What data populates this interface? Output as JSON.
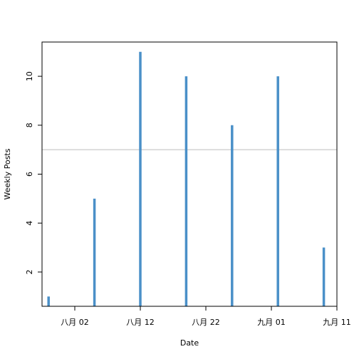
{
  "chart_data": {
    "type": "bar",
    "title": "",
    "xlabel": "Date",
    "ylabel": "Weekly Posts",
    "x_type": "date",
    "x": [
      "2013-07-29",
      "2013-08-05",
      "2013-08-12",
      "2013-08-19",
      "2013-08-26",
      "2013-09-02",
      "2013-09-09"
    ],
    "values": [
      1,
      5,
      11,
      10,
      8,
      10,
      3
    ],
    "xlim": [
      "2013-07-28",
      "2013-09-11"
    ],
    "ylim": [
      0.6,
      11.4
    ],
    "x_ticks": [
      {
        "date": "2013-08-02",
        "label": "八月 02"
      },
      {
        "date": "2013-08-12",
        "label": "八月 12"
      },
      {
        "date": "2013-08-22",
        "label": "八月 22"
      },
      {
        "date": "2013-09-01",
        "label": "九月 01"
      },
      {
        "date": "2013-09-11",
        "label": "九月 11"
      }
    ],
    "y_ticks": [
      2,
      4,
      6,
      8,
      10
    ],
    "reference_line": 7,
    "bar_color": "#4a90c8",
    "reference_line_color": "#bdbdbd",
    "grid": false,
    "legend": "none"
  }
}
